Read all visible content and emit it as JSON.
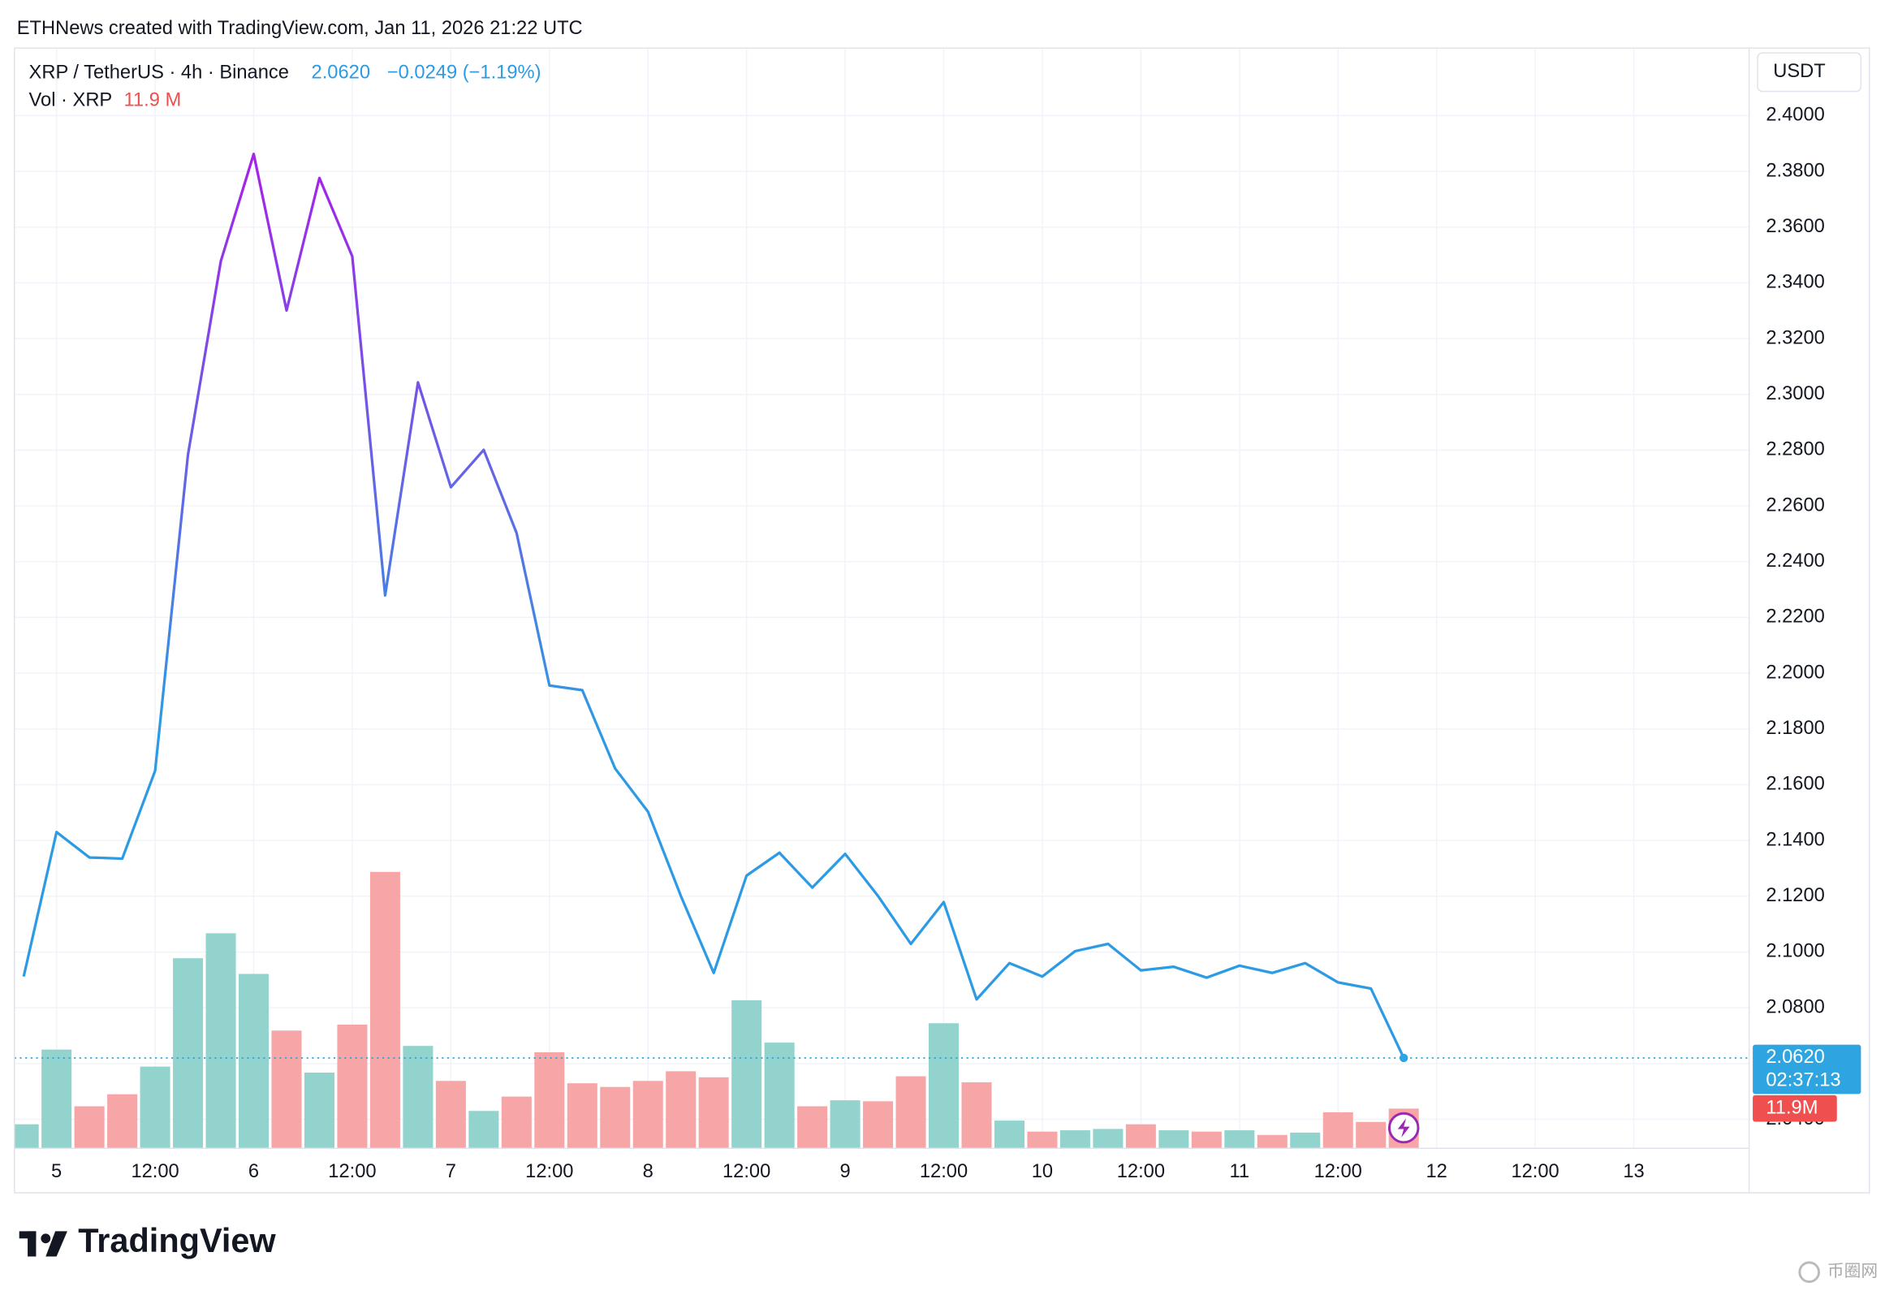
{
  "header": {
    "text": "ETHNews created with TradingView.com, Jan 11, 2026 21:22 UTC"
  },
  "chart_data": {
    "type": "line",
    "symbol": "XRP / TetherUS · 4h · Binance",
    "last_label": "2.0620",
    "change_label": "−0.0249 (−1.19%)",
    "countdown": "02:37:13",
    "currency": "USDT",
    "volume_title": "Vol · XRP",
    "volume_legend_label": "11.9 M",
    "volume_axis_label": "11.9M",
    "categories": [
      null,
      "5",
      null,
      null,
      "12:00",
      null,
      null,
      "6",
      null,
      null,
      "12:00",
      null,
      null,
      "7",
      null,
      null,
      "12:00",
      null,
      null,
      "8",
      null,
      null,
      "12:00",
      null,
      null,
      "9",
      null,
      null,
      "12:00",
      null,
      null,
      "10",
      null,
      null,
      "12:00",
      null,
      null,
      "11",
      null,
      null,
      "12:00",
      null,
      null,
      "12",
      null,
      null,
      "12:00",
      null,
      null,
      "13",
      null,
      null,
      null
    ],
    "values": [
      2.0912,
      2.143,
      2.1339,
      2.1335,
      2.165,
      2.2784,
      2.3478,
      2.3862,
      2.3301,
      2.3776,
      2.3495,
      2.2279,
      2.3043,
      2.2667,
      2.2801,
      2.2503,
      2.1956,
      2.1939,
      2.1658,
      2.1503,
      2.1201,
      2.0925,
      2.1274,
      2.1356,
      2.1231,
      2.1352,
      2.1201,
      2.1029,
      2.1179,
      2.083,
      2.096,
      2.0912,
      2.1003,
      2.1029,
      2.0934,
      2.0947,
      2.0908,
      2.0951,
      2.0925,
      2.096,
      2.0891,
      2.0869,
      2.062,
      null,
      null,
      null,
      null,
      null,
      null,
      null,
      null,
      null,
      null
    ],
    "line_colors": [
      "#a424e8",
      "#2d9be3"
    ],
    "last_color": "#2ea5e0",
    "ylim": [
      2.0296,
      2.4242
    ],
    "yticks": [
      {
        "value": 2.04,
        "label": "2.0400"
      },
      {
        "value": 2.06,
        "label": "2.0600"
      },
      {
        "value": 2.08,
        "label": "2.0800"
      },
      {
        "value": 2.1,
        "label": "2.1000"
      },
      {
        "value": 2.12,
        "label": "2.1200"
      },
      {
        "value": 2.14,
        "label": "2.1400"
      },
      {
        "value": 2.16,
        "label": "2.1600"
      },
      {
        "value": 2.18,
        "label": "2.1800"
      },
      {
        "value": 2.2,
        "label": "2.2000"
      },
      {
        "value": 2.22,
        "label": "2.2200"
      },
      {
        "value": 2.24,
        "label": "2.2400"
      },
      {
        "value": 2.26,
        "label": "2.2600"
      },
      {
        "value": 2.28,
        "label": "2.2800"
      },
      {
        "value": 2.3,
        "label": "2.3000"
      },
      {
        "value": 2.32,
        "label": "2.3200"
      },
      {
        "value": 2.34,
        "label": "2.3400"
      },
      {
        "value": 2.36,
        "label": "2.3600"
      },
      {
        "value": 2.38,
        "label": "2.3800"
      },
      {
        "value": 2.4,
        "label": "2.4000"
      }
    ],
    "grid": true,
    "volume": {
      "values": [
        7.2,
        29.6,
        12.6,
        16.2,
        24.5,
        57.0,
        64.5,
        52.3,
        35.3,
        22.7,
        37.1,
        82.9,
        30.7,
        20.2,
        11.2,
        15.5,
        28.8,
        19.5,
        18.4,
        20.2,
        23.1,
        21.3,
        44.4,
        31.7,
        12.6,
        14.4,
        14.1,
        21.6,
        37.5,
        19.8,
        8.3,
        5.0,
        5.4,
        5.8,
        7.2,
        5.4,
        5.0,
        5.4,
        4.0,
        4.7,
        10.8,
        7.9,
        11.9,
        null,
        null,
        null,
        null,
        null,
        null,
        null,
        null,
        null,
        null
      ],
      "ylim": [
        0,
        330
      ],
      "up_color": "#92d3cd",
      "down_color": "#f6a6a6",
      "label_color": "#ef4f4f"
    },
    "brand": "TradingView",
    "watermark": "币圈网"
  }
}
